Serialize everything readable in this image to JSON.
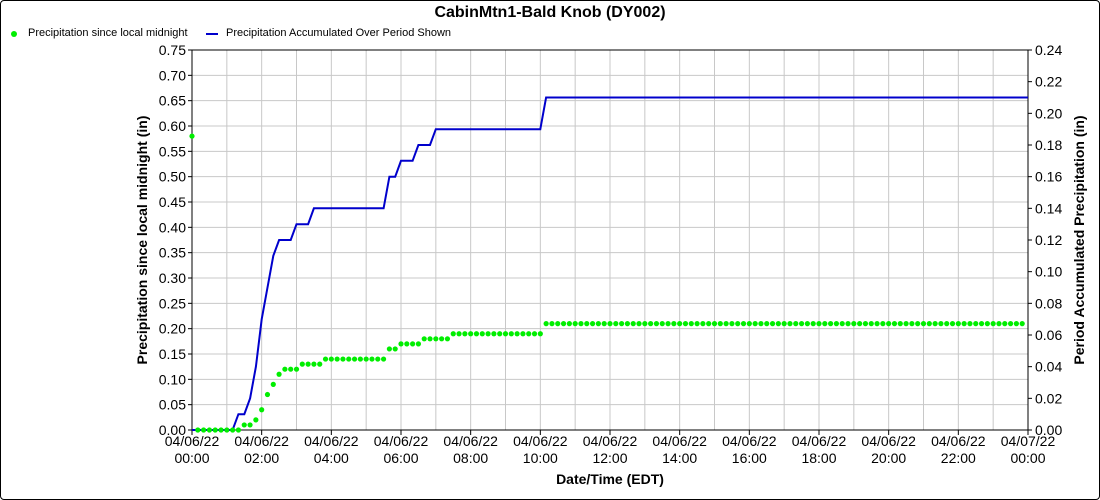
{
  "chart_data": {
    "type": "line",
    "title": "CabinMtn1-Bald Knob (DY002)",
    "xlabel": "Date/Time (EDT)",
    "ylabel_left": "Precipitation since local midnight (in)",
    "ylabel_right": "Period Accumulated Precipitation (in)",
    "x_tick_labels": [
      {
        "date": "04/06/22",
        "time": "00:00"
      },
      {
        "date": "04/06/22",
        "time": "02:00"
      },
      {
        "date": "04/06/22",
        "time": "04:00"
      },
      {
        "date": "04/06/22",
        "time": "06:00"
      },
      {
        "date": "04/06/22",
        "time": "08:00"
      },
      {
        "date": "04/06/22",
        "time": "10:00"
      },
      {
        "date": "04/06/22",
        "time": "12:00"
      },
      {
        "date": "04/06/22",
        "time": "14:00"
      },
      {
        "date": "04/06/22",
        "time": "16:00"
      },
      {
        "date": "04/06/22",
        "time": "18:00"
      },
      {
        "date": "04/06/22",
        "time": "20:00"
      },
      {
        "date": "04/06/22",
        "time": "22:00"
      },
      {
        "date": "04/07/22",
        "time": "00:00"
      }
    ],
    "xlim": [
      "04/06/22 00:00",
      "04/07/22 00:00"
    ],
    "ylim_left": [
      0,
      0.75
    ],
    "ylim_right": [
      0,
      0.24
    ],
    "y_ticks_left": [
      "0.00",
      "0.05",
      "0.10",
      "0.15",
      "0.20",
      "0.25",
      "0.30",
      "0.35",
      "0.40",
      "0.45",
      "0.50",
      "0.55",
      "0.60",
      "0.65",
      "0.70",
      "0.75"
    ],
    "y_ticks_right": [
      "0.00",
      "0.02",
      "0.04",
      "0.06",
      "0.08",
      "0.10",
      "0.12",
      "0.14",
      "0.16",
      "0.18",
      "0.20",
      "0.22",
      "0.24"
    ],
    "grid": true,
    "legend_position": "top-left",
    "series": [
      {
        "name": "Precipitation since local midnight",
        "kind": "scatter",
        "axis": "left",
        "color": "#00ee00",
        "points": [
          [
            "00:00",
            0.58
          ],
          [
            "00:10",
            0.0
          ],
          [
            "00:20",
            0.0
          ],
          [
            "00:30",
            0.0
          ],
          [
            "00:40",
            0.0
          ],
          [
            "00:50",
            0.0
          ],
          [
            "01:00",
            0.0
          ],
          [
            "01:10",
            0.0
          ],
          [
            "01:20",
            0.0
          ],
          [
            "01:30",
            0.01
          ],
          [
            "01:40",
            0.01
          ],
          [
            "01:50",
            0.02
          ],
          [
            "02:00",
            0.04
          ],
          [
            "02:10",
            0.07
          ],
          [
            "02:20",
            0.09
          ],
          [
            "02:30",
            0.11
          ],
          [
            "02:40",
            0.12
          ],
          [
            "02:50",
            0.12
          ],
          [
            "03:00",
            0.12
          ],
          [
            "03:10",
            0.13
          ],
          [
            "03:20",
            0.13
          ],
          [
            "03:30",
            0.13
          ],
          [
            "03:40",
            0.13
          ],
          [
            "03:50",
            0.14
          ],
          [
            "04:00",
            0.14
          ],
          [
            "04:10",
            0.14
          ],
          [
            "04:20",
            0.14
          ],
          [
            "04:30",
            0.14
          ],
          [
            "04:40",
            0.14
          ],
          [
            "04:50",
            0.14
          ],
          [
            "05:00",
            0.14
          ],
          [
            "05:10",
            0.14
          ],
          [
            "05:20",
            0.14
          ],
          [
            "05:30",
            0.14
          ],
          [
            "05:40",
            0.16
          ],
          [
            "05:50",
            0.16
          ],
          [
            "06:00",
            0.17
          ],
          [
            "06:10",
            0.17
          ],
          [
            "06:20",
            0.17
          ],
          [
            "06:30",
            0.17
          ],
          [
            "06:40",
            0.18
          ],
          [
            "06:50",
            0.18
          ],
          [
            "07:00",
            0.18
          ],
          [
            "07:10",
            0.18
          ],
          [
            "07:20",
            0.18
          ],
          [
            "07:30",
            0.19
          ],
          [
            "07:40",
            0.19
          ],
          [
            "07:50",
            0.19
          ],
          [
            "08:00",
            0.19
          ],
          [
            "08:10",
            0.19
          ],
          [
            "08:20",
            0.19
          ],
          [
            "08:30",
            0.19
          ],
          [
            "08:40",
            0.19
          ],
          [
            "08:50",
            0.19
          ],
          [
            "09:00",
            0.19
          ],
          [
            "09:10",
            0.19
          ],
          [
            "09:20",
            0.19
          ],
          [
            "09:30",
            0.19
          ],
          [
            "09:40",
            0.19
          ],
          [
            "09:50",
            0.19
          ],
          [
            "10:00",
            0.19
          ],
          [
            "10:10",
            0.21
          ],
          [
            "10:20",
            0.21
          ],
          [
            "10:30",
            0.21
          ],
          [
            "10:40",
            0.21
          ],
          [
            "10:50",
            0.21
          ],
          [
            "11:00",
            0.21
          ],
          [
            "11:10",
            0.21
          ],
          [
            "11:20",
            0.21
          ],
          [
            "11:30",
            0.21
          ],
          [
            "11:40",
            0.21
          ],
          [
            "11:50",
            0.21
          ],
          [
            "12:00",
            0.21
          ],
          [
            "12:10",
            0.21
          ],
          [
            "12:20",
            0.21
          ],
          [
            "12:30",
            0.21
          ],
          [
            "12:40",
            0.21
          ],
          [
            "12:50",
            0.21
          ],
          [
            "13:00",
            0.21
          ],
          [
            "13:10",
            0.21
          ],
          [
            "13:20",
            0.21
          ],
          [
            "13:30",
            0.21
          ],
          [
            "13:40",
            0.21
          ],
          [
            "13:50",
            0.21
          ],
          [
            "14:00",
            0.21
          ],
          [
            "14:10",
            0.21
          ],
          [
            "14:20",
            0.21
          ],
          [
            "14:30",
            0.21
          ],
          [
            "14:40",
            0.21
          ],
          [
            "14:50",
            0.21
          ],
          [
            "15:00",
            0.21
          ],
          [
            "15:10",
            0.21
          ],
          [
            "15:20",
            0.21
          ],
          [
            "15:30",
            0.21
          ],
          [
            "15:40",
            0.21
          ],
          [
            "15:50",
            0.21
          ],
          [
            "16:00",
            0.21
          ],
          [
            "16:10",
            0.21
          ],
          [
            "16:20",
            0.21
          ],
          [
            "16:30",
            0.21
          ],
          [
            "16:40",
            0.21
          ],
          [
            "16:50",
            0.21
          ],
          [
            "17:00",
            0.21
          ],
          [
            "17:10",
            0.21
          ],
          [
            "17:20",
            0.21
          ],
          [
            "17:30",
            0.21
          ],
          [
            "17:40",
            0.21
          ],
          [
            "17:50",
            0.21
          ],
          [
            "18:00",
            0.21
          ],
          [
            "18:10",
            0.21
          ],
          [
            "18:20",
            0.21
          ],
          [
            "18:30",
            0.21
          ],
          [
            "18:40",
            0.21
          ],
          [
            "18:50",
            0.21
          ],
          [
            "19:00",
            0.21
          ],
          [
            "19:10",
            0.21
          ],
          [
            "19:20",
            0.21
          ],
          [
            "19:30",
            0.21
          ],
          [
            "19:40",
            0.21
          ],
          [
            "19:50",
            0.21
          ],
          [
            "20:00",
            0.21
          ],
          [
            "20:10",
            0.21
          ],
          [
            "20:20",
            0.21
          ],
          [
            "20:30",
            0.21
          ],
          [
            "20:40",
            0.21
          ],
          [
            "20:50",
            0.21
          ],
          [
            "21:00",
            0.21
          ],
          [
            "21:10",
            0.21
          ],
          [
            "21:20",
            0.21
          ],
          [
            "21:30",
            0.21
          ],
          [
            "21:40",
            0.21
          ],
          [
            "21:50",
            0.21
          ],
          [
            "22:00",
            0.21
          ],
          [
            "22:10",
            0.21
          ],
          [
            "22:20",
            0.21
          ],
          [
            "22:30",
            0.21
          ],
          [
            "22:40",
            0.21
          ],
          [
            "22:50",
            0.21
          ],
          [
            "23:00",
            0.21
          ],
          [
            "23:10",
            0.21
          ],
          [
            "23:20",
            0.21
          ],
          [
            "23:30",
            0.21
          ],
          [
            "23:40",
            0.21
          ],
          [
            "23:50",
            0.21
          ]
        ]
      },
      {
        "name": "Precipitation Accumulated Over Period Shown",
        "kind": "line",
        "axis": "right",
        "color": "#0000cc",
        "points": [
          [
            "00:00",
            0.0
          ],
          [
            "01:10",
            0.0
          ],
          [
            "01:20",
            0.01
          ],
          [
            "01:30",
            0.01
          ],
          [
            "01:40",
            0.02
          ],
          [
            "01:50",
            0.04
          ],
          [
            "02:00",
            0.07
          ],
          [
            "02:10",
            0.09
          ],
          [
            "02:20",
            0.11
          ],
          [
            "02:30",
            0.12
          ],
          [
            "02:50",
            0.12
          ],
          [
            "03:00",
            0.13
          ],
          [
            "03:20",
            0.13
          ],
          [
            "03:30",
            0.14
          ],
          [
            "05:30",
            0.14
          ],
          [
            "05:40",
            0.16
          ],
          [
            "05:50",
            0.16
          ],
          [
            "06:00",
            0.17
          ],
          [
            "06:20",
            0.17
          ],
          [
            "06:30",
            0.18
          ],
          [
            "06:50",
            0.18
          ],
          [
            "07:00",
            0.19
          ],
          [
            "10:00",
            0.19
          ],
          [
            "10:10",
            0.21
          ],
          [
            "24:00",
            0.21
          ]
        ]
      }
    ]
  }
}
